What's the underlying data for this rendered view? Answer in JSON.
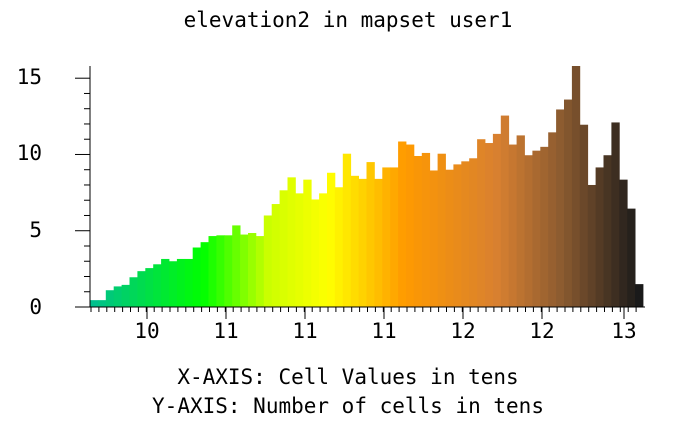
{
  "chart_data": {
    "type": "bar",
    "title": "elevation2 in mapset user1",
    "xlabel": "X-AXIS: Cell Values in tens",
    "ylabel": "Y-AXIS: Number of cells in tens",
    "x_tick_labels": [
      "10",
      "11",
      "11",
      "11",
      "12",
      "12",
      "13"
    ],
    "y_tick_labels": [
      "0",
      "5",
      "10",
      "15"
    ],
    "ylim": [
      0,
      16
    ],
    "grid": false,
    "legend": "none",
    "values": [
      0.45,
      0.45,
      1.1,
      1.35,
      1.45,
      1.95,
      2.35,
      2.55,
      2.8,
      3.15,
      3.0,
      3.15,
      3.15,
      3.9,
      4.25,
      4.65,
      4.7,
      4.7,
      5.35,
      4.75,
      4.85,
      4.65,
      6.0,
      6.75,
      7.65,
      8.5,
      7.45,
      8.35,
      7.05,
      7.45,
      8.8,
      7.85,
      10.05,
      8.6,
      8.4,
      9.5,
      8.4,
      9.15,
      9.15,
      10.85,
      10.65,
      9.9,
      10.1,
      8.95,
      10.05,
      9.0,
      9.35,
      9.55,
      9.75,
      11.0,
      10.75,
      11.35,
      12.55,
      10.65,
      11.25,
      9.95,
      10.25,
      10.5,
      11.45,
      12.95,
      13.6,
      15.8,
      11.95,
      8.0,
      9.15,
      9.95,
      12.1,
      8.35,
      6.45,
      1.5
    ],
    "colors": {
      "gradient_stops": [
        {
          "value": 0.0,
          "color": "#00c08c"
        },
        {
          "value": 0.2,
          "color": "#00ff00"
        },
        {
          "value": 0.32,
          "color": "#ccff00"
        },
        {
          "value": 0.43,
          "color": "#ffff00"
        },
        {
          "value": 0.57,
          "color": "#ff9a00"
        },
        {
          "value": 0.74,
          "color": "#d88030"
        },
        {
          "value": 0.86,
          "color": "#8a5a30"
        },
        {
          "value": 1.0,
          "color": "#1a1a1a"
        }
      ]
    }
  }
}
